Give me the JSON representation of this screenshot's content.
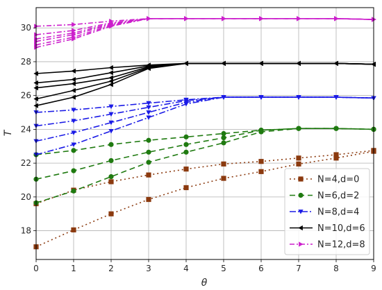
{
  "chart_data": {
    "type": "line",
    "title": "",
    "xlabel": "θ",
    "ylabel": "T",
    "xlim": [
      0,
      9
    ],
    "ylim": [
      16.3,
      31.2
    ],
    "xticks": [
      0,
      1,
      2,
      3,
      4,
      5,
      6,
      7,
      8,
      9
    ],
    "yticks": [
      18,
      20,
      22,
      24,
      26,
      28,
      30
    ],
    "grid": true,
    "legend_position": "bottom-right",
    "groups": [
      {
        "legend": "N=4,d=0",
        "color": "#8B3A0F",
        "dash": "2,4",
        "marker": "square",
        "lines": [
          {
            "x": [
              0,
              1,
              2,
              3,
              4,
              5,
              6,
              7,
              8,
              9
            ],
            "y": [
              17.05,
              18.05,
              19.0,
              19.85,
              20.55,
              21.1,
              21.5,
              21.95,
              22.3,
              22.7
            ]
          },
          {
            "x": [
              0,
              1,
              2,
              3,
              4,
              5,
              6,
              7,
              8,
              9
            ],
            "y": [
              19.6,
              20.4,
              20.9,
              21.3,
              21.65,
              21.95,
              22.1,
              22.3,
              22.5,
              22.75
            ]
          }
        ]
      },
      {
        "legend": "N=6,d=2",
        "color": "#1F7A10",
        "dash": "8,5",
        "marker": "circle",
        "lines": [
          {
            "x": [
              0,
              1,
              2,
              3,
              4,
              5,
              6,
              7,
              8,
              9
            ],
            "y": [
              19.65,
              20.35,
              21.2,
              22.05,
              22.65,
              23.2,
              23.85,
              24.05,
              24.05,
              24.0
            ]
          },
          {
            "x": [
              0,
              1,
              2,
              3,
              4,
              5,
              6,
              7,
              8,
              9
            ],
            "y": [
              21.05,
              21.55,
              22.15,
              22.65,
              23.1,
              23.5,
              23.95,
              24.05,
              24.05,
              24.0
            ]
          },
          {
            "x": [
              0,
              1,
              2,
              3,
              4,
              5,
              6,
              7,
              8,
              9
            ],
            "y": [
              22.5,
              22.75,
              23.1,
              23.35,
              23.55,
              23.75,
              23.95,
              24.05,
              24.05,
              24.0
            ]
          }
        ]
      },
      {
        "legend": "N=8,d=4",
        "color": "#1A1AE6",
        "dash": "9,3,2,3",
        "marker": "triangle-down",
        "lines": [
          {
            "x": [
              0,
              1,
              2,
              3,
              4,
              5,
              6,
              7,
              8,
              9
            ],
            "y": [
              22.5,
              23.1,
              23.9,
              24.7,
              25.5,
              25.9,
              25.9,
              25.9,
              25.9,
              25.85
            ]
          },
          {
            "x": [
              0,
              1,
              2,
              3,
              4,
              5,
              6,
              7,
              8,
              9
            ],
            "y": [
              23.3,
              23.8,
              24.4,
              25.0,
              25.6,
              25.9,
              25.9,
              25.9,
              25.9,
              25.85
            ]
          },
          {
            "x": [
              0,
              1,
              2,
              3,
              4,
              5,
              6,
              7,
              8,
              9
            ],
            "y": [
              24.2,
              24.5,
              24.9,
              25.3,
              25.7,
              25.9,
              25.9,
              25.9,
              25.9,
              25.85
            ]
          },
          {
            "x": [
              0,
              1,
              2,
              3,
              4,
              5,
              6,
              7,
              8,
              9
            ],
            "y": [
              25.0,
              25.15,
              25.35,
              25.55,
              25.75,
              25.9,
              25.9,
              25.9,
              25.9,
              25.85
            ]
          }
        ]
      },
      {
        "legend": "N=10,d=6",
        "color": "#000000",
        "dash": "",
        "marker": "triangle-left",
        "lines": [
          {
            "x": [
              0,
              1,
              2,
              3,
              4,
              5,
              6,
              7,
              8,
              9
            ],
            "y": [
              25.4,
              25.9,
              26.65,
              27.6,
              27.9,
              27.9,
              27.9,
              27.9,
              27.9,
              27.85
            ]
          },
          {
            "x": [
              0,
              1,
              2,
              3,
              4,
              5,
              6,
              7,
              8,
              9
            ],
            "y": [
              25.8,
              26.3,
              26.85,
              27.65,
              27.9,
              27.9,
              27.9,
              27.9,
              27.9,
              27.85
            ]
          },
          {
            "x": [
              0,
              1,
              2,
              3,
              4,
              5,
              6,
              7,
              8,
              9
            ],
            "y": [
              26.45,
              26.7,
              27.05,
              27.7,
              27.9,
              27.9,
              27.9,
              27.9,
              27.9,
              27.85
            ]
          },
          {
            "x": [
              0,
              1,
              2,
              3,
              4,
              5,
              6,
              7,
              8,
              9
            ],
            "y": [
              26.75,
              26.95,
              27.35,
              27.75,
              27.9,
              27.9,
              27.9,
              27.9,
              27.9,
              27.85
            ]
          },
          {
            "x": [
              0,
              1,
              2,
              3,
              4,
              5,
              6,
              7,
              8,
              9
            ],
            "y": [
              27.3,
              27.45,
              27.65,
              27.8,
              27.9,
              27.9,
              27.9,
              27.9,
              27.9,
              27.85
            ]
          }
        ]
      },
      {
        "legend": "N=12,d=8",
        "color": "#CC1FCC",
        "dash": "7,3,2,3",
        "marker": "triangle-right",
        "lines": [
          {
            "x": [
              0,
              1,
              2,
              3,
              4,
              5,
              6,
              7,
              8,
              9
            ],
            "y": [
              28.85,
              29.35,
              30.1,
              30.55,
              30.55,
              30.55,
              30.55,
              30.55,
              30.55,
              30.5
            ]
          },
          {
            "x": [
              0,
              1,
              2,
              3,
              4,
              5,
              6,
              7,
              8,
              9
            ],
            "y": [
              29.0,
              29.45,
              30.15,
              30.55,
              30.55,
              30.55,
              30.55,
              30.55,
              30.55,
              30.5
            ]
          },
          {
            "x": [
              0,
              1,
              2,
              3,
              4,
              5,
              6,
              7,
              8,
              9
            ],
            "y": [
              29.2,
              29.6,
              30.2,
              30.55,
              30.55,
              30.55,
              30.55,
              30.55,
              30.55,
              30.5
            ]
          },
          {
            "x": [
              0,
              1,
              2,
              3,
              4,
              5,
              6,
              7,
              8,
              9
            ],
            "y": [
              29.35,
              29.7,
              30.25,
              30.55,
              30.55,
              30.55,
              30.55,
              30.55,
              30.55,
              30.5
            ]
          },
          {
            "x": [
              0,
              1,
              2,
              3,
              4,
              5,
              6,
              7,
              8,
              9
            ],
            "y": [
              29.6,
              29.85,
              30.3,
              30.55,
              30.55,
              30.55,
              30.55,
              30.55,
              30.55,
              30.5
            ]
          },
          {
            "x": [
              0,
              1,
              2,
              3,
              4,
              5,
              6,
              7,
              8,
              9
            ],
            "y": [
              30.1,
              30.2,
              30.4,
              30.55,
              30.55,
              30.55,
              30.55,
              30.55,
              30.55,
              30.5
            ]
          }
        ]
      }
    ]
  }
}
